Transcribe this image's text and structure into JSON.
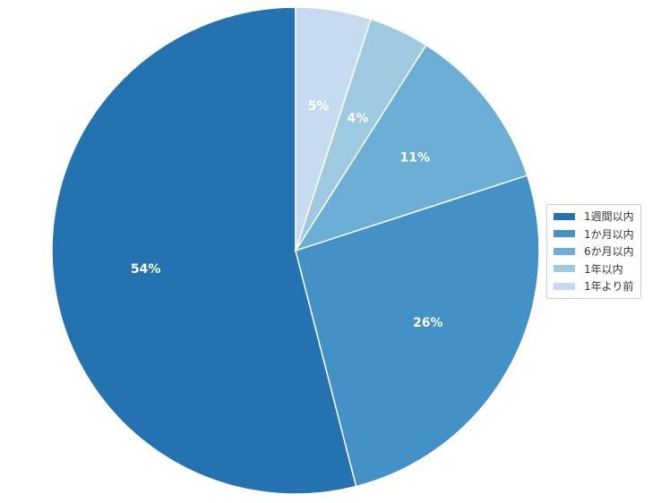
{
  "chart_data": {
    "type": "pie",
    "categories": [
      "1週間以内",
      "1か月以内",
      "6か月以内",
      "1年以内",
      "1年より前"
    ],
    "values": [
      54,
      26,
      11,
      4,
      5
    ],
    "labels": [
      "54%",
      "26%",
      "11%",
      "4%",
      "5%"
    ],
    "colors": [
      "#2473b0",
      "#4391c6",
      "#6baed6",
      "#9ecae1",
      "#c6dbef"
    ],
    "start": "top",
    "direction": "counterclockwise",
    "legend_position": "right"
  }
}
